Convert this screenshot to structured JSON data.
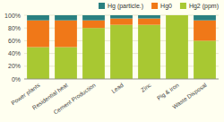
{
  "chart_data": {
    "type": "bar",
    "stacked": true,
    "categories": [
      "Power plants",
      "Residential heat",
      "Cement Production",
      "Lead",
      "Zinc",
      "Pig & iron",
      "Waste Disposal"
    ],
    "series": [
      {
        "name": "Hg2 (ppm)",
        "color": "#a8c832",
        "values": [
          50,
          50,
          80,
          85,
          85,
          100,
          60
        ]
      },
      {
        "name": "Hg0",
        "color": "#f07818",
        "values": [
          42,
          42,
          12,
          10,
          10,
          0,
          32
        ]
      },
      {
        "name": "Hg (particle.)",
        "color": "#2a8080",
        "values": [
          8,
          8,
          8,
          5,
          5,
          0,
          8
        ]
      }
    ],
    "ylim": [
      0,
      100
    ],
    "yticks": [
      {
        "value": 0,
        "label": "0%"
      },
      {
        "value": 20,
        "label": "20%"
      },
      {
        "value": 40,
        "label": "40%"
      },
      {
        "value": 60,
        "label": "60%"
      },
      {
        "value": 80,
        "label": "80%"
      },
      {
        "value": 100,
        "label": "100%"
      }
    ],
    "grid": true,
    "legend": "top"
  }
}
